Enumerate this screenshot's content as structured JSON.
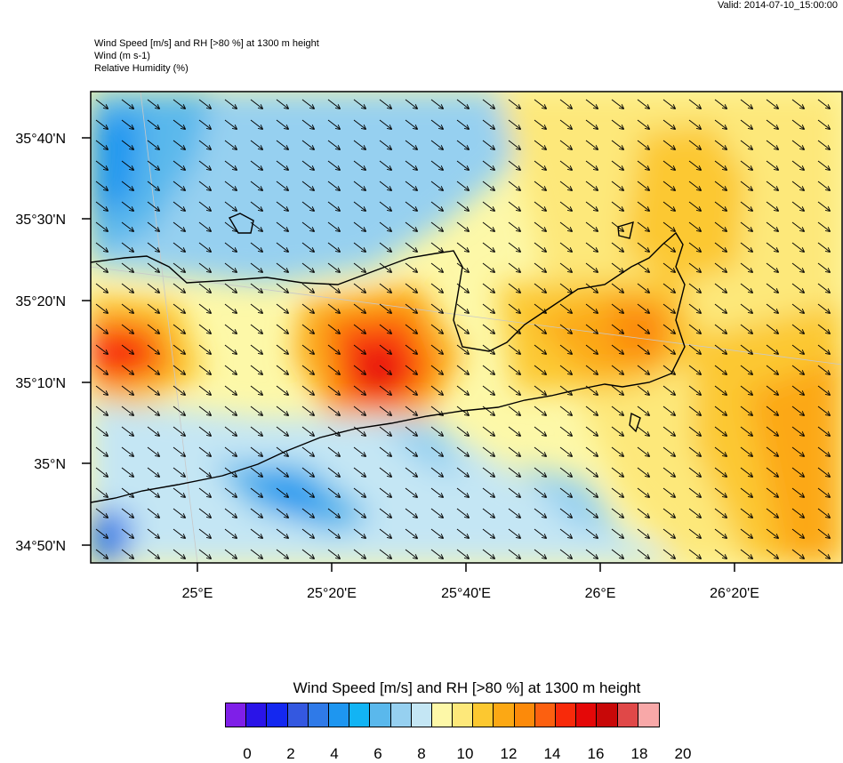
{
  "header": {
    "valid": "Valid: 2014-07-10_15:00:00",
    "line1": "Wind Speed [m/s] and RH [>80 %] at 1300 m height",
    "line2": "Wind   (m s-1)",
    "line3": "Relative Humidity   (%)"
  },
  "axes": {
    "lat_labels": [
      "35°40'N",
      "35°30'N",
      "35°20'N",
      "35°10'N",
      "35°N",
      "34°50'N"
    ],
    "lon_labels": [
      "25°E",
      "25°20'E",
      "25°40'E",
      "26°E",
      "26°20'E"
    ]
  },
  "colorbar": {
    "title": "Wind Speed [m/s] and RH [>80 %] at 1300 m height",
    "tick_labels": [
      "0",
      "2",
      "4",
      "6",
      "8",
      "10",
      "12",
      "14",
      "16",
      "18",
      "20"
    ],
    "colors": [
      "#7f1fe8",
      "#2a14e8",
      "#1428f0",
      "#3458e0",
      "#2f7ae8",
      "#1e96f0",
      "#12b4f4",
      "#5ab8ec",
      "#96d0f0",
      "#c4e6f4",
      "#fdf8a8",
      "#fde87a",
      "#fcc830",
      "#fca814",
      "#fc8a0a",
      "#fc6010",
      "#f82a0a",
      "#e40808",
      "#c80808",
      "#e04848",
      "#f8a8a8"
    ]
  },
  "map": {
    "wind_direction": "northwest",
    "land_color": "none",
    "coastline_color": "#000000"
  }
}
